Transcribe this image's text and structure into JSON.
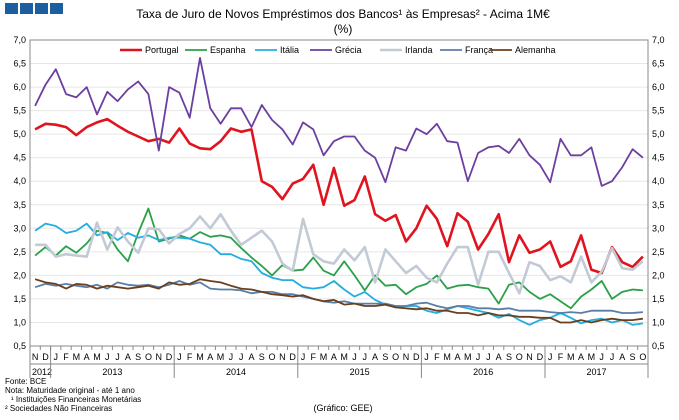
{
  "chart_data": {
    "type": "line",
    "title": "Taxa de Juro de Novos Empréstimos dos Bancos¹ às Empresas² - Acima 1M€",
    "subtitle": "(%)",
    "ylim": [
      0.5,
      7.0
    ],
    "yticks": [
      "0,5",
      "1,0",
      "1,5",
      "2,0",
      "2,5",
      "3,0",
      "3,5",
      "4,0",
      "4,5",
      "5,0",
      "5,5",
      "6,0",
      "6,5",
      "7,0"
    ],
    "ytick_values": [
      0.5,
      1.0,
      1.5,
      2.0,
      2.5,
      3.0,
      3.5,
      4.0,
      4.5,
      5.0,
      5.5,
      6.0,
      6.5,
      7.0
    ],
    "months": [
      "N",
      "D",
      "J",
      "F",
      "M",
      "A",
      "M",
      "J",
      "J",
      "A",
      "S",
      "O",
      "N",
      "D",
      "J",
      "F",
      "M",
      "A",
      "M",
      "J",
      "J",
      "A",
      "S",
      "O",
      "N",
      "D",
      "J",
      "F",
      "M",
      "A",
      "M",
      "J",
      "J",
      "A",
      "S",
      "O",
      "N",
      "D",
      "J",
      "F",
      "M",
      "A",
      "M",
      "J",
      "J",
      "A",
      "S",
      "O",
      "N",
      "D",
      "J",
      "F",
      "M",
      "A",
      "M",
      "J",
      "J",
      "A",
      "S",
      "O"
    ],
    "years": [
      {
        "label": "2012",
        "start": 0,
        "end": 1
      },
      {
        "label": "2013",
        "start": 2,
        "end": 13
      },
      {
        "label": "2014",
        "start": 14,
        "end": 25
      },
      {
        "label": "2015",
        "start": 26,
        "end": 37
      },
      {
        "label": "2016",
        "start": 38,
        "end": 49
      },
      {
        "label": "2017",
        "start": 50,
        "end": 59
      }
    ],
    "series": [
      {
        "name": "Portugal",
        "color": "#e0141e",
        "width": 2.6,
        "values": [
          5.1,
          5.22,
          5.2,
          5.15,
          4.98,
          5.15,
          5.25,
          5.32,
          5.18,
          5.05,
          4.95,
          4.85,
          4.9,
          4.82,
          5.12,
          4.8,
          4.7,
          4.68,
          4.85,
          5.12,
          5.05,
          5.1,
          4.0,
          3.88,
          3.62,
          3.95,
          4.05,
          4.35,
          3.5,
          4.28,
          3.48,
          3.6,
          4.1,
          3.3,
          3.16,
          3.28,
          2.72,
          3.0,
          3.48,
          3.2,
          2.62,
          3.32,
          3.14,
          2.55,
          2.88,
          3.3,
          2.28,
          2.85,
          2.48,
          2.55,
          2.72,
          2.18,
          2.3,
          2.85,
          2.12,
          2.05,
          2.6,
          2.28,
          2.18,
          2.4
        ]
      },
      {
        "name": "Espanha",
        "color": "#2aa04a",
        "width": 1.8,
        "values": [
          2.42,
          2.6,
          2.42,
          2.62,
          2.48,
          2.68,
          2.95,
          2.9,
          2.55,
          2.3,
          2.9,
          3.42,
          2.72,
          2.78,
          2.85,
          2.78,
          2.92,
          2.82,
          2.85,
          2.8,
          2.58,
          2.38,
          2.2,
          2.0,
          2.22,
          2.1,
          2.12,
          2.38,
          2.1,
          2.0,
          2.3,
          2.0,
          1.68,
          2.0,
          1.78,
          1.8,
          1.6,
          1.75,
          1.82,
          2.0,
          1.72,
          1.78,
          1.8,
          1.75,
          1.72,
          1.4,
          1.8,
          1.85,
          1.65,
          1.5,
          1.6,
          1.45,
          1.3,
          1.55,
          1.7,
          1.88,
          1.5,
          1.65,
          1.7,
          1.68
        ]
      },
      {
        "name": "Itália",
        "color": "#22aee0",
        "width": 1.8,
        "values": [
          2.95,
          3.1,
          3.05,
          2.9,
          2.95,
          3.1,
          2.85,
          2.92,
          2.75,
          2.9,
          2.8,
          2.85,
          2.75,
          2.8,
          2.8,
          2.78,
          2.7,
          2.65,
          2.45,
          2.45,
          2.35,
          2.3,
          2.05,
          1.95,
          1.9,
          1.9,
          1.75,
          1.72,
          1.75,
          1.88,
          1.7,
          1.55,
          1.65,
          1.48,
          1.38,
          1.32,
          1.35,
          1.35,
          1.25,
          1.2,
          1.28,
          1.35,
          1.3,
          1.25,
          1.2,
          1.1,
          1.18,
          1.05,
          0.95,
          1.05,
          1.1,
          1.2,
          1.1,
          0.98,
          1.05,
          1.08,
          1.0,
          1.05,
          0.95,
          0.98
        ]
      },
      {
        "name": "Grécia",
        "color": "#6b3fa0",
        "width": 1.8,
        "values": [
          5.6,
          6.05,
          6.38,
          5.85,
          5.78,
          6.0,
          5.42,
          5.9,
          5.7,
          5.95,
          6.12,
          5.85,
          4.65,
          6.0,
          5.88,
          5.35,
          6.62,
          5.55,
          5.22,
          5.55,
          5.55,
          5.15,
          5.62,
          5.3,
          5.1,
          4.78,
          5.25,
          5.1,
          4.55,
          4.85,
          4.95,
          4.95,
          4.65,
          4.5,
          3.98,
          4.72,
          4.65,
          5.12,
          5.0,
          5.22,
          4.85,
          4.82,
          4.0,
          4.6,
          4.72,
          4.75,
          4.6,
          4.9,
          4.55,
          4.35,
          3.98,
          4.9,
          4.55,
          4.55,
          4.72,
          3.9,
          4.0,
          4.3,
          4.68,
          4.5
        ]
      },
      {
        "name": "Irlanda",
        "color": "#c2cad6",
        "width": 2.6,
        "values": [
          2.65,
          2.65,
          2.4,
          2.45,
          2.42,
          2.4,
          3.12,
          2.55,
          3.02,
          2.72,
          2.48,
          3.0,
          2.98,
          2.68,
          2.88,
          3.0,
          3.25,
          3.0,
          3.3,
          2.95,
          2.65,
          2.8,
          2.95,
          2.72,
          2.25,
          2.1,
          3.2,
          2.45,
          2.3,
          2.25,
          2.55,
          2.32,
          2.6,
          1.85,
          2.55,
          2.3,
          2.05,
          2.2,
          1.95,
          1.85,
          2.25,
          2.6,
          2.6,
          1.8,
          2.5,
          2.5,
          2.05,
          1.62,
          2.28,
          2.2,
          1.9,
          1.98,
          1.85,
          2.4,
          1.85,
          2.08,
          2.58,
          2.15,
          2.12,
          2.3
        ]
      },
      {
        "name": "França",
        "color": "#5b7ea6",
        "width": 1.8,
        "values": [
          1.75,
          1.82,
          1.78,
          1.82,
          1.78,
          1.75,
          1.8,
          1.72,
          1.85,
          1.8,
          1.78,
          1.8,
          1.75,
          1.8,
          1.88,
          1.8,
          1.85,
          1.72,
          1.7,
          1.7,
          1.68,
          1.62,
          1.65,
          1.65,
          1.6,
          1.6,
          1.55,
          1.5,
          1.45,
          1.42,
          1.45,
          1.4,
          1.4,
          1.4,
          1.4,
          1.35,
          1.35,
          1.4,
          1.42,
          1.35,
          1.3,
          1.35,
          1.35,
          1.3,
          1.3,
          1.28,
          1.3,
          1.25,
          1.25,
          1.25,
          1.22,
          1.2,
          1.22,
          1.2,
          1.25,
          1.25,
          1.25,
          1.2,
          1.2,
          1.22
        ]
      },
      {
        "name": "Alemanha",
        "color": "#6b3f1e",
        "width": 1.8,
        "values": [
          1.92,
          1.85,
          1.82,
          1.72,
          1.82,
          1.8,
          1.72,
          1.78,
          1.75,
          1.72,
          1.75,
          1.78,
          1.72,
          1.85,
          1.8,
          1.82,
          1.92,
          1.88,
          1.85,
          1.78,
          1.72,
          1.7,
          1.65,
          1.6,
          1.58,
          1.55,
          1.58,
          1.5,
          1.45,
          1.48,
          1.38,
          1.4,
          1.35,
          1.35,
          1.38,
          1.32,
          1.3,
          1.28,
          1.3,
          1.25,
          1.25,
          1.2,
          1.2,
          1.15,
          1.2,
          1.15,
          1.15,
          1.12,
          1.12,
          1.1,
          1.1,
          1.0,
          1.0,
          1.05,
          1.0,
          1.05,
          1.08,
          1.05,
          1.05,
          1.08
        ]
      }
    ]
  },
  "header": {
    "logo_label": "",
    "source_note": "Fonte: BCE",
    "notes": [
      "Nota: Maturidade original - até 1 ano",
      "¹ Instituições Financeiras Monetárias",
      "² Sociedades Não Financeiras"
    ],
    "credit": "(Gráfico: GEE)"
  },
  "colors": {
    "logo": "#1b5f9e",
    "frame": "#888888",
    "grid": "#e6e6e6"
  }
}
